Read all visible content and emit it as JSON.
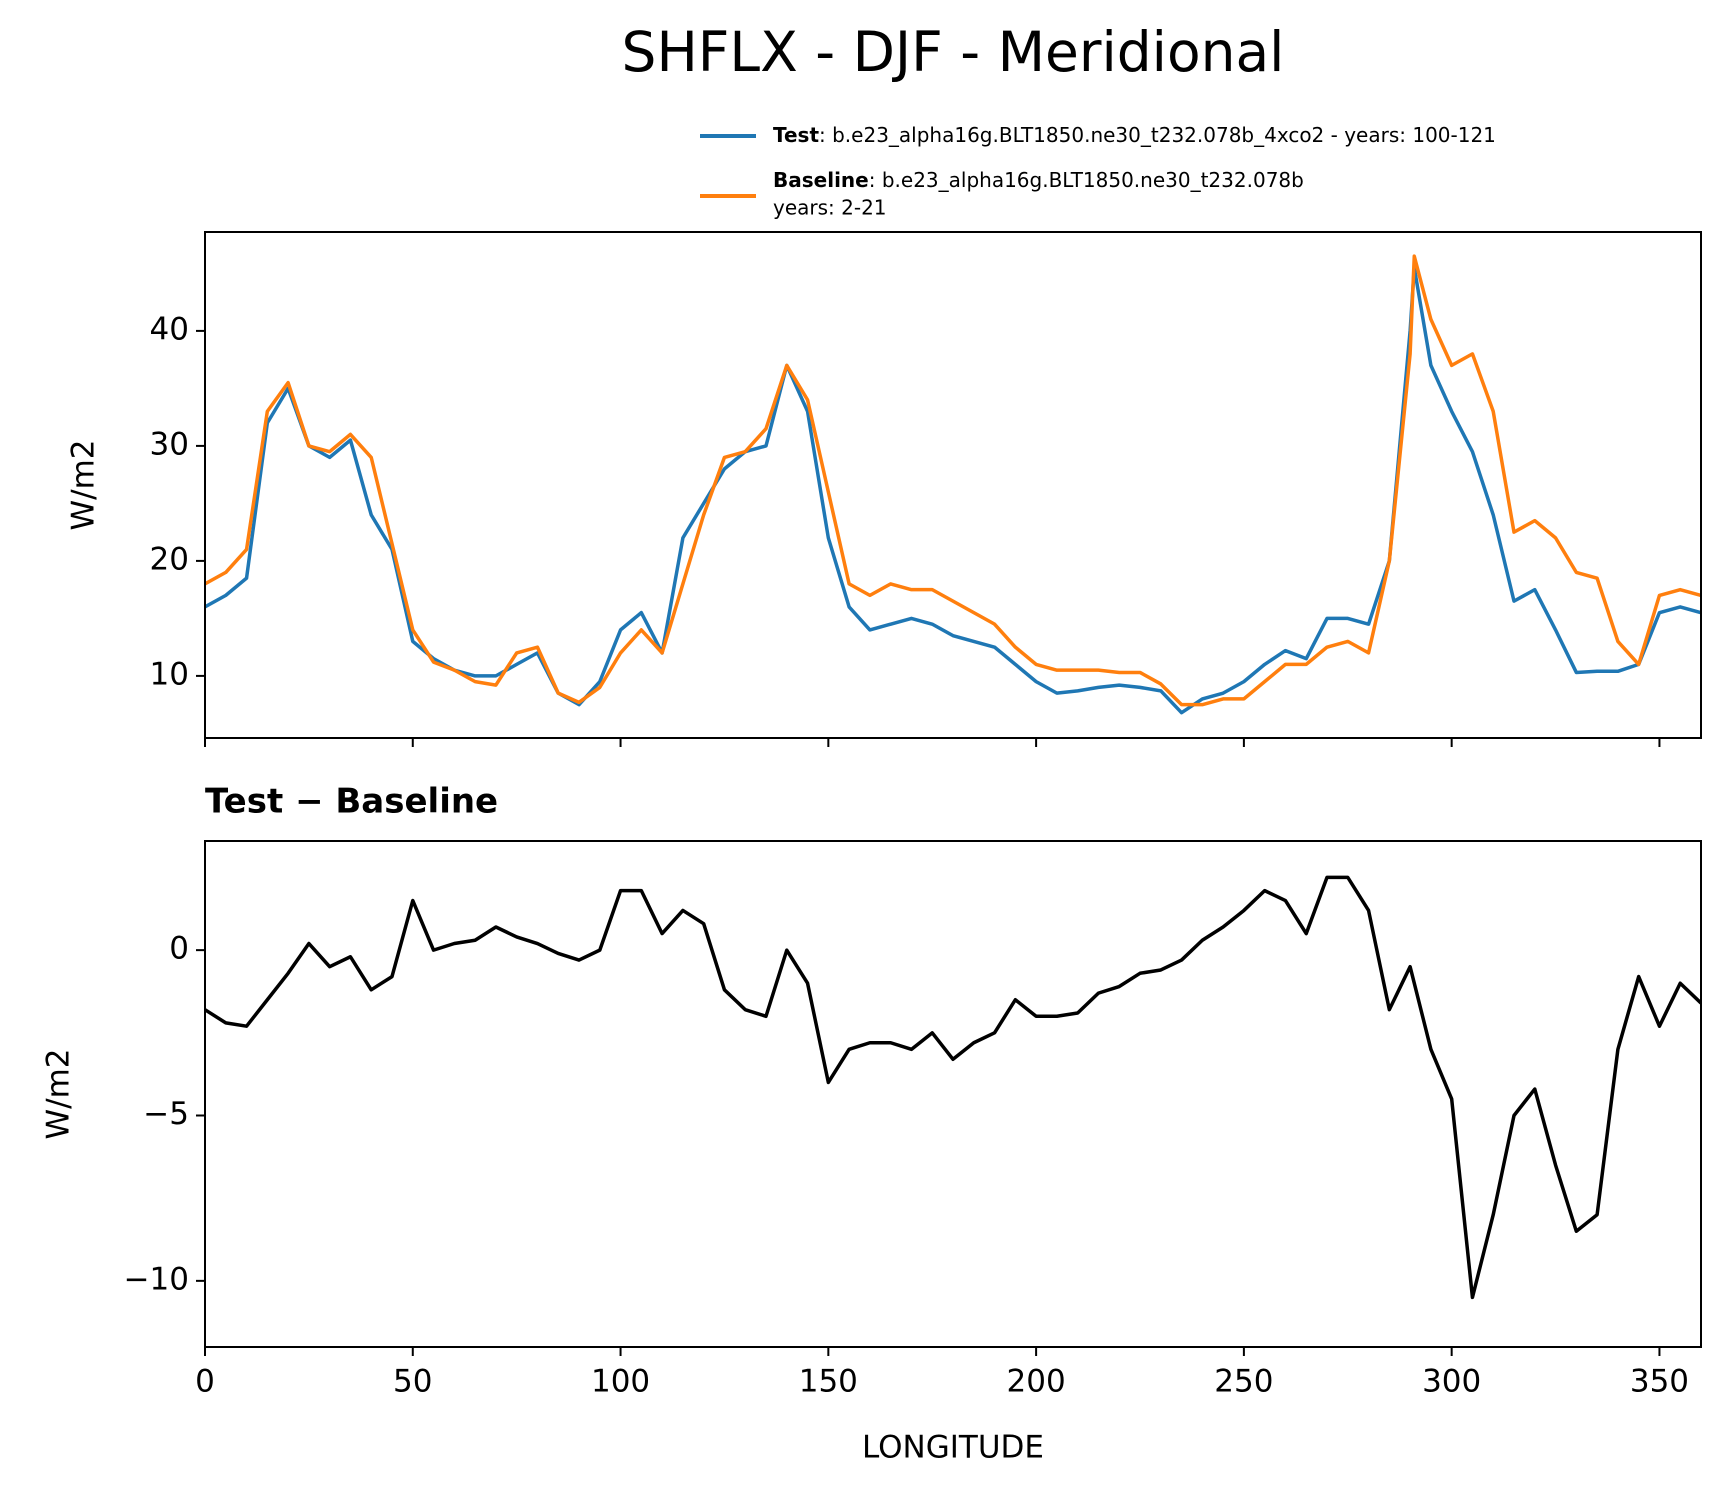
{
  "title": "SHFLX - DJF - Meridional",
  "chart_data": [
    {
      "type": "line",
      "ylabel": "W/m2",
      "x": [
        0,
        5,
        10,
        15,
        20,
        25,
        30,
        35,
        40,
        45,
        50,
        55,
        60,
        65,
        70,
        75,
        80,
        85,
        90,
        95,
        100,
        105,
        110,
        115,
        120,
        125,
        130,
        135,
        140,
        145,
        150,
        155,
        160,
        165,
        170,
        175,
        180,
        185,
        190,
        195,
        200,
        205,
        210,
        215,
        220,
        225,
        230,
        235,
        240,
        245,
        250,
        255,
        260,
        265,
        270,
        275,
        280,
        285,
        290,
        291,
        295,
        300,
        305,
        310,
        315,
        320,
        325,
        330,
        335,
        340,
        345,
        350,
        355,
        360
      ],
      "series": [
        {
          "name": "Test",
          "description": [
            ": b.e23_alpha16g.BLT1850.ne30_t232.078b_4xco2 - years: 100-121"
          ],
          "color": "#1f77b4",
          "values": [
            16,
            17,
            18.5,
            32,
            35,
            30,
            29,
            30.5,
            24,
            21,
            13,
            11.5,
            10.5,
            10,
            10,
            11,
            12,
            8.5,
            7.5,
            9.5,
            14,
            15.5,
            12,
            22,
            25,
            28,
            29.5,
            30,
            37,
            33,
            22,
            16,
            14,
            14.5,
            15,
            14.5,
            13.5,
            13,
            12.5,
            11,
            9.5,
            8.5,
            8.7,
            9,
            9.2,
            9,
            8.7,
            6.8,
            8,
            8.5,
            9.5,
            11,
            12.2,
            11.5,
            15,
            15,
            14.5,
            20,
            40,
            45.5,
            37,
            33,
            29.5,
            24,
            16.5,
            17.5,
            14,
            10.3,
            10.4,
            10.4,
            11,
            15.5,
            16,
            15.5
          ]
        },
        {
          "name": "Baseline",
          "description": [
            ": b.e23_alpha16g.BLT1850.ne30_t232.078b",
            "years: 2-21"
          ],
          "color": "#ff7f0e",
          "values": [
            18,
            19,
            21,
            33,
            35.5,
            30,
            29.5,
            31,
            29,
            21.5,
            14,
            11.2,
            10.5,
            9.5,
            9.2,
            12,
            12.5,
            8.5,
            7.7,
            9,
            12,
            14,
            12,
            18,
            24,
            29,
            29.5,
            31.5,
            37,
            34,
            26,
            18,
            17,
            18,
            17.5,
            17.5,
            16.5,
            15.5,
            14.5,
            12.5,
            11,
            10.5,
            10.5,
            10.5,
            10.3,
            10.3,
            9.3,
            7.5,
            7.5,
            8,
            8,
            9.5,
            11,
            11,
            12.5,
            13,
            12,
            20,
            38,
            46.5,
            41,
            37,
            38,
            33,
            22.5,
            23.5,
            22,
            19,
            18.5,
            13,
            11,
            17,
            17.5,
            17
          ]
        }
      ],
      "xlim": [
        0,
        360
      ],
      "xticks": [
        0,
        50,
        100,
        150,
        200,
        250,
        300,
        350
      ],
      "ylim": [
        4.6,
        48.6
      ],
      "yticks": [
        10,
        20,
        30,
        40
      ]
    },
    {
      "type": "line",
      "title": "Test − Baseline",
      "ylabel": "W/m2",
      "xlabel": "LONGITUDE",
      "x": [
        0,
        5,
        10,
        15,
        20,
        25,
        30,
        35,
        40,
        45,
        50,
        55,
        60,
        65,
        70,
        75,
        80,
        85,
        90,
        95,
        100,
        105,
        110,
        115,
        120,
        125,
        130,
        135,
        140,
        145,
        150,
        155,
        160,
        165,
        170,
        175,
        180,
        185,
        190,
        195,
        200,
        205,
        210,
        215,
        220,
        225,
        230,
        235,
        240,
        245,
        250,
        255,
        260,
        265,
        270,
        275,
        280,
        285,
        290,
        291,
        295,
        300,
        305,
        310,
        315,
        320,
        325,
        330,
        335,
        340,
        345,
        350,
        355,
        360
      ],
      "series": [
        {
          "color": "#000000",
          "values": [
            -1.8,
            -2.2,
            -2.3,
            -1.5,
            -0.7,
            0.2,
            -0.5,
            -0.2,
            -1.2,
            -0.8,
            1.5,
            0,
            0.2,
            0.3,
            0.7,
            0.4,
            0.2,
            -0.1,
            -0.3,
            0,
            1.8,
            1.8,
            0.5,
            1.2,
            0.8,
            -1.2,
            -1.8,
            -2,
            0,
            -1,
            -4,
            -3,
            -2.8,
            -2.8,
            -3,
            -2.5,
            -3.3,
            -2.8,
            -2.5,
            -1.5,
            -2,
            -2,
            -1.9,
            -1.3,
            -1.1,
            -0.7,
            -0.6,
            -0.3,
            0.3,
            0.7,
            1.2,
            1.8,
            1.5,
            0.5,
            2.2,
            2.2,
            1.2,
            -1.8,
            -0.5,
            -1,
            -3,
            -4.5,
            -10.5,
            -8,
            -5,
            -4.2,
            -6.5,
            -8.5,
            -8,
            -3,
            -0.8,
            -2.3,
            -1,
            -1.6
          ]
        }
      ],
      "xlim": [
        0,
        360
      ],
      "xticks": [
        0,
        50,
        100,
        150,
        200,
        250,
        300,
        350
      ],
      "ylim": [
        -12,
        3.3
      ],
      "yticks": [
        {
          "value": -10,
          "label": "−10"
        },
        {
          "value": -5,
          "label": "−5"
        },
        0
      ]
    }
  ]
}
